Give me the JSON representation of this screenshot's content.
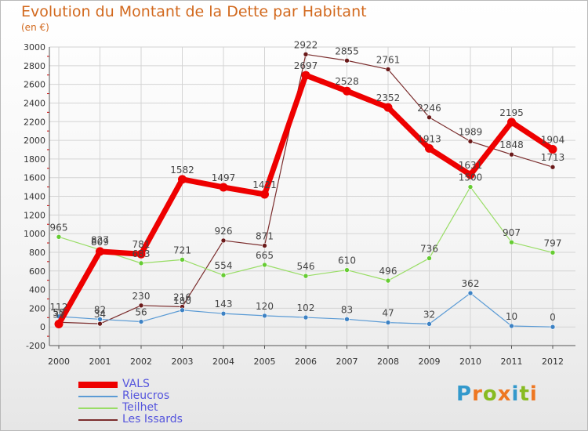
{
  "header": {
    "title": "Evolution du Montant de la Dette par Habitant",
    "unit": "(en €)"
  },
  "chart_data": {
    "type": "line",
    "title": "Evolution du Montant de la Dette par Habitant",
    "subtitle": "(en €)",
    "xlabel": "",
    "ylabel": "",
    "x": [
      "2000",
      "2001",
      "2002",
      "2003",
      "2004",
      "2005",
      "2006",
      "2007",
      "2008",
      "2009",
      "2010",
      "2011",
      "2012"
    ],
    "ylim": [
      -200,
      3000
    ],
    "yticks": [
      -200,
      0,
      200,
      400,
      600,
      800,
      1000,
      1200,
      1400,
      1600,
      1800,
      2000,
      2200,
      2400,
      2600,
      2800,
      3000
    ],
    "grid": "horizontal",
    "legend_position": "bottom-left",
    "series": [
      {
        "name": "VALS",
        "color": "#ee0000",
        "values": [
          31,
          809,
          781,
          1582,
          1497,
          1421,
          2697,
          2528,
          2352,
          1913,
          1631,
          2195,
          1904
        ]
      },
      {
        "name": "Rieucros",
        "color": "#5b9bd5",
        "values": [
          112,
          82,
          56,
          180,
          143,
          120,
          102,
          83,
          47,
          32,
          362,
          10,
          0
        ]
      },
      {
        "name": "Teilhet",
        "color": "#99dd66",
        "values": [
          965,
          827,
          683,
          721,
          554,
          665,
          546,
          610,
          496,
          736,
          1500,
          907,
          797
        ]
      },
      {
        "name": "Les Issards",
        "color": "#7b2d2d",
        "values": [
          50,
          34,
          230,
          216,
          926,
          871,
          2922,
          2855,
          2761,
          2246,
          1989,
          1848,
          1713
        ]
      }
    ]
  },
  "legend": {
    "items": [
      {
        "label": "VALS",
        "color": "#ee0000"
      },
      {
        "label": "Rieucros",
        "color": "#5b9bd5"
      },
      {
        "label": "Teilhet",
        "color": "#99dd66"
      },
      {
        "label": "Les Issards",
        "color": "#7b2d2d"
      }
    ]
  },
  "logo": {
    "text": "Proxiti",
    "colors": [
      "#3399cc",
      "#ee7722",
      "#88bb22",
      "#ee7722",
      "#3399cc",
      "#88bb22",
      "#ee7722"
    ]
  }
}
